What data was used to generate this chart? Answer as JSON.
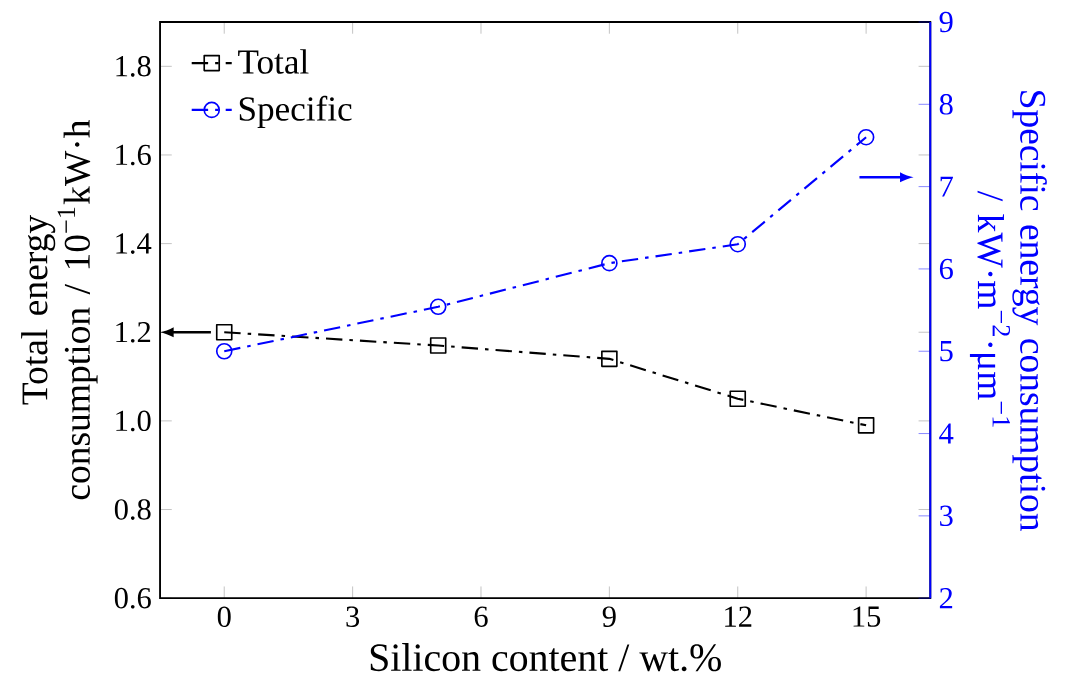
{
  "chart_data": {
    "type": "line",
    "xlabel": "Silicon content / wt.%",
    "ylabel": "Total energy consumption / 10$^{−1}$kW·h",
    "y2label": "Specific energy consumption / kW·m$^{−2}$·μm$^{−1}$",
    "x": [
      0,
      5,
      9,
      12,
      15
    ],
    "series": [
      {
        "name": "Total",
        "color": "#000000",
        "marker": "square",
        "values": [
          1.2,
          1.17,
          1.14,
          1.05,
          0.99
        ]
      },
      {
        "name": "Specific",
        "color": "#0000ff",
        "marker": "circle",
        "axis": "y2",
        "values": [
          5.0,
          5.54,
          6.07,
          6.3,
          7.6
        ]
      }
    ],
    "xlim": [
      -1.5,
      16.5
    ],
    "xticks": [
      0,
      3,
      6,
      9,
      12,
      15
    ],
    "ylim": [
      0.6,
      1.9
    ],
    "yticks": [
      0.6,
      0.8,
      {
        "value": 1,
        "label": "1.0"
      },
      1.2,
      1.4,
      1.6,
      1.8
    ],
    "y2lim": [
      2,
      9
    ],
    "y2ticks": [
      2,
      3,
      4,
      5,
      6,
      7,
      8,
      9
    ],
    "line_style": "dashdot",
    "legend": "top left",
    "grid": false
  }
}
